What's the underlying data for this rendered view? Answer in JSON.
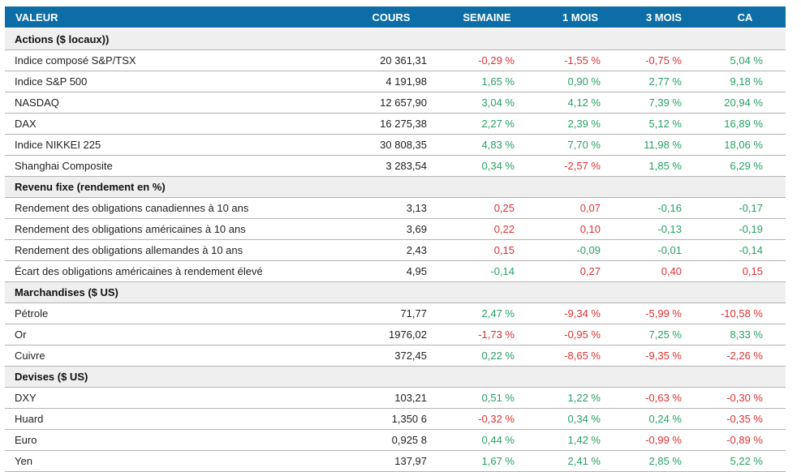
{
  "colors": {
    "header_bg": "#0d6da7",
    "header_text": "#ffffff",
    "section_bg": "#efefef",
    "row_border": "#b3b3b3",
    "text": "#222222",
    "green": "#27a163",
    "red": "#dd3132"
  },
  "chart_data": {
    "type": "table",
    "columns": [
      "VALEUR",
      "COURS",
      "SEMAINE",
      "1 MOIS",
      "3 MOIS",
      "CA"
    ],
    "sections": [
      {
        "label": "Actions ($ locaux))",
        "rows": [
          {
            "valeur": "Indice composé S&P/TSX",
            "cours": "20 361,31",
            "values": [
              {
                "text": "-0,29 %",
                "color": "red"
              },
              {
                "text": "-1,55 %",
                "color": "red"
              },
              {
                "text": "-0,75 %",
                "color": "red"
              },
              {
                "text": "5,04 %",
                "color": "green"
              }
            ]
          },
          {
            "valeur": "Indice S&P 500",
            "cours": "4 191,98",
            "values": [
              {
                "text": "1,65 %",
                "color": "green"
              },
              {
                "text": "0,90 %",
                "color": "green"
              },
              {
                "text": "2,77 %",
                "color": "green"
              },
              {
                "text": "9,18 %",
                "color": "green"
              }
            ]
          },
          {
            "valeur": "NASDAQ",
            "cours": "12 657,90",
            "values": [
              {
                "text": "3,04 %",
                "color": "green"
              },
              {
                "text": "4,12 %",
                "color": "green"
              },
              {
                "text": "7,39 %",
                "color": "green"
              },
              {
                "text": "20,94 %",
                "color": "green"
              }
            ]
          },
          {
            "valeur": "DAX",
            "cours": "16 275,38",
            "values": [
              {
                "text": "2,27 %",
                "color": "green"
              },
              {
                "text": "2,39 %",
                "color": "green"
              },
              {
                "text": "5,12 %",
                "color": "green"
              },
              {
                "text": "16,89 %",
                "color": "green"
              }
            ]
          },
          {
            "valeur": "Indice NIKKEI 225",
            "cours": "30 808,35",
            "values": [
              {
                "text": "4,83 %",
                "color": "green"
              },
              {
                "text": "7,70 %",
                "color": "green"
              },
              {
                "text": "11,98 %",
                "color": "green"
              },
              {
                "text": "18,06 %",
                "color": "green"
              }
            ]
          },
          {
            "valeur": "Shanghai Composite",
            "cours": "3 283,54",
            "values": [
              {
                "text": "0,34 %",
                "color": "green"
              },
              {
                "text": "-2,57 %",
                "color": "red"
              },
              {
                "text": "1,85 %",
                "color": "green"
              },
              {
                "text": "6,29 %",
                "color": "green"
              }
            ]
          }
        ]
      },
      {
        "label": "Revenu fixe (rendement en %)",
        "rows": [
          {
            "valeur": "Rendement des obligations canadiennes à 10 ans",
            "cours": "3,13",
            "values": [
              {
                "text": "0,25",
                "color": "red"
              },
              {
                "text": "0,07",
                "color": "red"
              },
              {
                "text": "-0,16",
                "color": "green"
              },
              {
                "text": "-0,17",
                "color": "green"
              }
            ]
          },
          {
            "valeur": "Rendement des obligations américaines à 10 ans",
            "cours": "3,69",
            "values": [
              {
                "text": "0,22",
                "color": "red"
              },
              {
                "text": "0,10",
                "color": "red"
              },
              {
                "text": "-0,13",
                "color": "green"
              },
              {
                "text": "-0,19",
                "color": "green"
              }
            ]
          },
          {
            "valeur": "Rendement des obligations allemandes à 10 ans",
            "cours": "2,43",
            "values": [
              {
                "text": "0,15",
                "color": "red"
              },
              {
                "text": "-0,09",
                "color": "green"
              },
              {
                "text": "-0,01",
                "color": "green"
              },
              {
                "text": "-0,14",
                "color": "green"
              }
            ]
          },
          {
            "valeur": "Écart des obligations américaines à rendement élevé",
            "cours": "4,95",
            "values": [
              {
                "text": "-0,14",
                "color": "green"
              },
              {
                "text": "0,27",
                "color": "red"
              },
              {
                "text": "0,40",
                "color": "red"
              },
              {
                "text": "0,15",
                "color": "red"
              }
            ]
          }
        ]
      },
      {
        "label": "Marchandises ($ US)",
        "rows": [
          {
            "valeur": "Pétrole",
            "cours": "71,77",
            "values": [
              {
                "text": "2,47 %",
                "color": "green"
              },
              {
                "text": "-9,34 %",
                "color": "red"
              },
              {
                "text": "-5,99 %",
                "color": "red"
              },
              {
                "text": "-10,58 %",
                "color": "red"
              }
            ]
          },
          {
            "valeur": "Or",
            "cours": "1976,02",
            "values": [
              {
                "text": "-1,73 %",
                "color": "red"
              },
              {
                "text": "-0,95 %",
                "color": "red"
              },
              {
                "text": "7,25 %",
                "color": "green"
              },
              {
                "text": "8,33 %",
                "color": "green"
              }
            ]
          },
          {
            "valeur": "Cuivre",
            "cours": "372,45",
            "values": [
              {
                "text": "0,22 %",
                "color": "green"
              },
              {
                "text": "-8,65 %",
                "color": "red"
              },
              {
                "text": "-9,35 %",
                "color": "red"
              },
              {
                "text": "-2,26 %",
                "color": "red"
              }
            ]
          }
        ]
      },
      {
        "label": "Devises ($ US)",
        "rows": [
          {
            "valeur": "DXY",
            "cours": "103,21",
            "values": [
              {
                "text": "0,51 %",
                "color": "green"
              },
              {
                "text": "1,22 %",
                "color": "green"
              },
              {
                "text": "-0,63 %",
                "color": "red"
              },
              {
                "text": "-0,30 %",
                "color": "red"
              }
            ]
          },
          {
            "valeur": "Huard",
            "cours": "1,350 6",
            "values": [
              {
                "text": "-0,32 %",
                "color": "red"
              },
              {
                "text": "0,34 %",
                "color": "green"
              },
              {
                "text": "0,24 %",
                "color": "green"
              },
              {
                "text": "-0,35 %",
                "color": "red"
              }
            ]
          },
          {
            "valeur": "Euro",
            "cours": "0,925 8",
            "values": [
              {
                "text": "0,44 %",
                "color": "green"
              },
              {
                "text": "1,42 %",
                "color": "green"
              },
              {
                "text": "-0,99 %",
                "color": "red"
              },
              {
                "text": "-0,89 %",
                "color": "red"
              }
            ]
          },
          {
            "valeur": "Yen",
            "cours": "137,97",
            "values": [
              {
                "text": "1,67 %",
                "color": "green"
              },
              {
                "text": "2,41 %",
                "color": "green"
              },
              {
                "text": "2,85 %",
                "color": "green"
              },
              {
                "text": "5,22 %",
                "color": "green"
              }
            ]
          }
        ]
      }
    ]
  }
}
